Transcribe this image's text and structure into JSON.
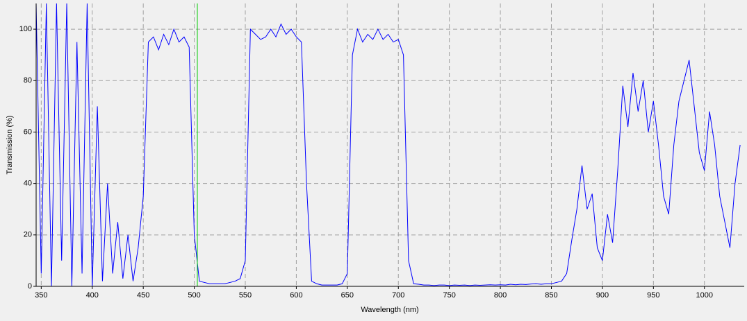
{
  "chart_data": {
    "type": "line",
    "x_label": "Wavelength (nm)",
    "y_label": "Transmission (%)",
    "x": [
      345,
      350,
      355,
      360,
      365,
      370,
      375,
      380,
      385,
      390,
      395,
      400,
      405,
      410,
      415,
      420,
      425,
      430,
      435,
      440,
      445,
      450,
      455,
      460,
      465,
      470,
      475,
      480,
      485,
      490,
      495,
      500,
      505,
      510,
      515,
      520,
      525,
      530,
      535,
      540,
      545,
      550,
      555,
      560,
      565,
      570,
      575,
      580,
      585,
      590,
      595,
      600,
      605,
      610,
      615,
      620,
      625,
      630,
      635,
      640,
      645,
      650,
      655,
      660,
      665,
      670,
      675,
      680,
      685,
      690,
      695,
      700,
      705,
      710,
      715,
      720,
      725,
      730,
      735,
      740,
      745,
      750,
      755,
      760,
      765,
      770,
      775,
      780,
      785,
      790,
      795,
      800,
      805,
      810,
      815,
      820,
      825,
      830,
      835,
      840,
      845,
      850,
      855,
      860,
      865,
      870,
      875,
      880,
      885,
      890,
      895,
      900,
      905,
      910,
      915,
      920,
      925,
      930,
      935,
      940,
      945,
      950,
      955,
      960,
      965,
      970,
      975,
      980,
      985,
      990,
      995,
      1000,
      1005,
      1010,
      1015,
      1020,
      1025,
      1030,
      1035
    ],
    "series": [
      {
        "name": "Transmission",
        "color": "#0000ff",
        "values": [
          110,
          5,
          110,
          0,
          110,
          10,
          110,
          0,
          95,
          5,
          110,
          0,
          70,
          2,
          40,
          5,
          25,
          3,
          20,
          2,
          15,
          35,
          95,
          97,
          92,
          98,
          94,
          100,
          95,
          97,
          93,
          20,
          2,
          1.5,
          1,
          1,
          1,
          1,
          1.5,
          2,
          3,
          10,
          100,
          98,
          96,
          97,
          100,
          97,
          102,
          98,
          100,
          97,
          95,
          40,
          2,
          1,
          0.5,
          0.5,
          0.5,
          0.5,
          1,
          5,
          90,
          100,
          95,
          98,
          96,
          100,
          96,
          98,
          95,
          96,
          90,
          10,
          1,
          0.8,
          0.5,
          0.5,
          0.3,
          0.5,
          0.5,
          0.3,
          0.5,
          0.4,
          0.5,
          0.3,
          0.5,
          0.4,
          0.5,
          0.6,
          0.5,
          0.6,
          0.5,
          0.8,
          0.6,
          0.8,
          0.7,
          0.9,
          1,
          0.8,
          1,
          1,
          1.5,
          2,
          5,
          18,
          30,
          47,
          30,
          36,
          15,
          10,
          28,
          17,
          45,
          78,
          62,
          83,
          68,
          80,
          60,
          72,
          55,
          35,
          28,
          55,
          72,
          80,
          88,
          70,
          52,
          45,
          68,
          55,
          35,
          25,
          15,
          40,
          55
        ]
      }
    ],
    "marker_x": 503,
    "marker_color": "#00cc00",
    "xlim": [
      345,
      1039
    ],
    "ylim": [
      0,
      110
    ],
    "xticks": [
      350,
      400,
      450,
      500,
      550,
      600,
      650,
      700,
      750,
      800,
      850,
      900,
      950,
      1000
    ],
    "yticks": [
      0,
      20,
      40,
      60,
      80,
      100
    ],
    "grid": true
  }
}
